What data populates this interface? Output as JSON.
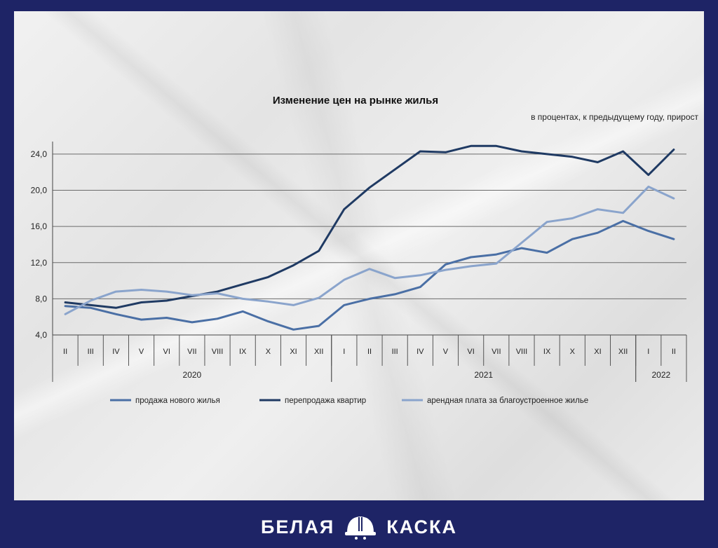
{
  "chart_data": {
    "type": "line",
    "title": "Изменение цен на рынке жилья",
    "subtitle": "в процентах, к предыдущему году, прирост",
    "ylim": [
      4,
      25
    ],
    "yticks": [
      "4,0",
      "8,0",
      "12,0",
      "16,0",
      "20,0",
      "24,0"
    ],
    "categories": [
      "II",
      "III",
      "IV",
      "V",
      "VI",
      "VII",
      "VIII",
      "IX",
      "X",
      "XI",
      "XII",
      "I",
      "II",
      "III",
      "IV",
      "V",
      "VI",
      "VII",
      "VIII",
      "IX",
      "X",
      "XI",
      "XII",
      "I",
      "II"
    ],
    "years": [
      {
        "label": "2020",
        "from": 0,
        "to": 10
      },
      {
        "label": "2021",
        "from": 11,
        "to": 22
      },
      {
        "label": "2022",
        "from": 23,
        "to": 24
      }
    ],
    "grid": true,
    "legend_position": "bottom",
    "series": [
      {
        "name": "продажа нового жилья",
        "color": "#4a6fa5",
        "values": [
          7.2,
          7.0,
          6.3,
          5.7,
          5.9,
          5.4,
          5.8,
          6.6,
          5.5,
          4.6,
          5.0,
          7.3,
          8.0,
          8.5,
          9.3,
          11.8,
          12.6,
          12.9,
          13.6,
          13.1,
          14.6,
          15.3,
          16.6,
          15.5,
          14.6
        ]
      },
      {
        "name": "перепродажа квартир",
        "color": "#1f3a63",
        "values": [
          7.6,
          7.3,
          7.0,
          7.6,
          7.8,
          8.3,
          8.8,
          9.6,
          10.4,
          11.7,
          13.3,
          17.9,
          20.3,
          22.3,
          24.3,
          24.2,
          24.9,
          24.9,
          24.3,
          24.0,
          23.7,
          23.1,
          24.3,
          21.7,
          24.5
        ]
      },
      {
        "name": "арендная плата за благоустроенное  жилье",
        "color": "#8aa4cc",
        "values": [
          6.3,
          7.8,
          8.8,
          9.0,
          8.8,
          8.4,
          8.6,
          8.0,
          7.7,
          7.3,
          8.1,
          10.1,
          11.3,
          10.3,
          10.6,
          11.2,
          11.6,
          11.9,
          14.2,
          16.5,
          16.9,
          17.9,
          17.5,
          20.4,
          19.1
        ]
      }
    ]
  },
  "branding": {
    "left": "БЕЛАЯ",
    "right": "КАСКА"
  }
}
